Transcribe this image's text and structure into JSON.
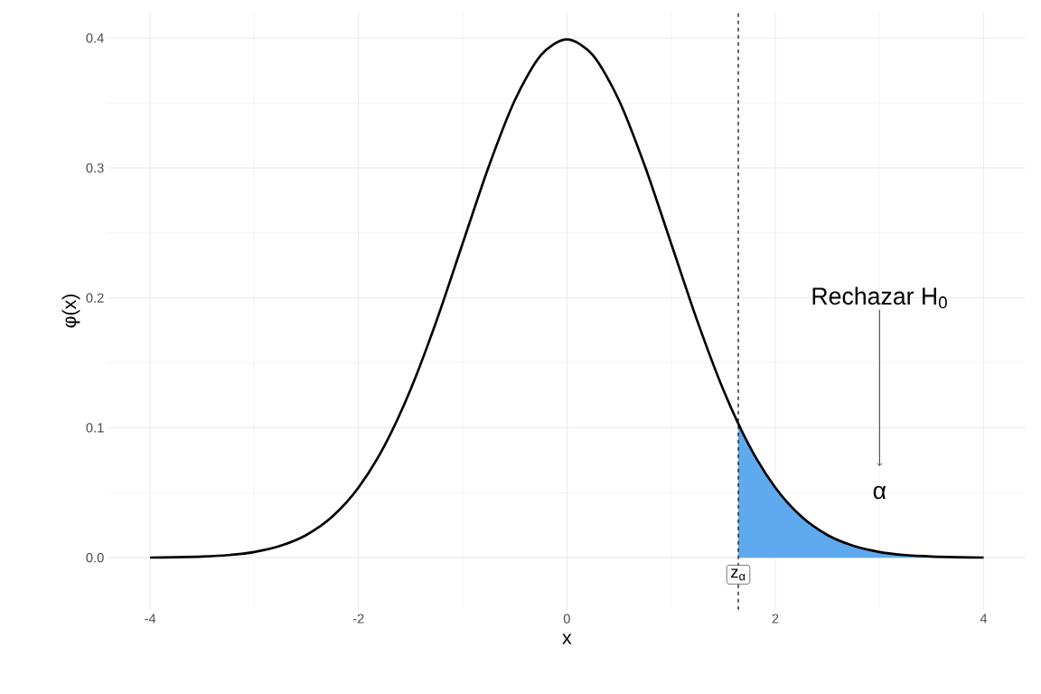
{
  "chart_data": {
    "type": "line",
    "xlabel": "x",
    "ylabel": "φ(x)",
    "xlim": [
      -4.4,
      4.4
    ],
    "ylim": [
      -0.04,
      0.42
    ],
    "xticks": [
      -4,
      -2,
      0,
      2,
      4
    ],
    "yticks": [
      {
        "value": 0,
        "label": "0.0"
      },
      0.1,
      0.2,
      0.3,
      0.4
    ],
    "grid": true,
    "series": [
      {
        "type": "area",
        "color": "#5fa9ee",
        "x": [
          1.645,
          1.75,
          2,
          2.25,
          2.5,
          2.75,
          3,
          3.25,
          3.5,
          3.75,
          4
        ],
        "values": [
          0.1031,
          0.0863,
          0.054,
          0.0317,
          0.0175,
          0.0091,
          0.0044,
          0.002,
          0.0009,
          0.0004,
          0.0001
        ]
      },
      {
        "type": "line",
        "color": "#000000",
        "x": [
          -4,
          -3.75,
          -3.5,
          -3.25,
          -3,
          -2.75,
          -2.5,
          -2.25,
          -2,
          -1.75,
          -1.5,
          -1.25,
          -1,
          -0.75,
          -0.5,
          -0.25,
          0,
          0.25,
          0.5,
          0.75,
          1,
          1.25,
          1.5,
          1.75,
          2,
          2.25,
          2.5,
          2.75,
          3,
          3.25,
          3.5,
          3.75,
          4
        ],
        "values": [
          0.0001,
          0.0004,
          0.0009,
          0.002,
          0.0044,
          0.0091,
          0.0175,
          0.0317,
          0.054,
          0.0863,
          0.1295,
          0.1826,
          0.242,
          0.3011,
          0.3521,
          0.3867,
          0.3989,
          0.3867,
          0.3521,
          0.3011,
          0.242,
          0.1826,
          0.1295,
          0.0863,
          0.054,
          0.0317,
          0.0175,
          0.0091,
          0.0044,
          0.002,
          0.0009,
          0.0004,
          0.0001
        ]
      }
    ],
    "ref_lines": [
      {
        "axis": "x",
        "value": 1.645,
        "label": "z$_{α}$",
        "line_style": "dashed"
      }
    ],
    "annotations": [
      "Rechazar H$_{0}$",
      "α"
    ]
  }
}
